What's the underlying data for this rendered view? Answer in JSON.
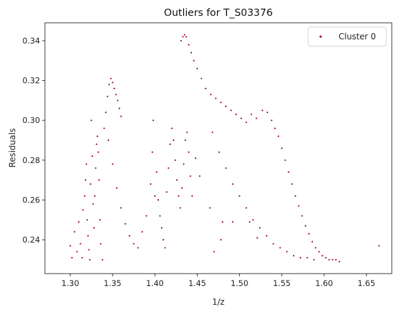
{
  "chart_data": {
    "type": "scatter",
    "title": "Outliers for T_S03376",
    "xlabel": "1/z",
    "ylabel": "Residuals",
    "xlim": [
      1.27,
      1.68
    ],
    "ylim": [
      0.223,
      0.349
    ],
    "xticks": [
      1.3,
      1.35,
      1.4,
      1.45,
      1.5,
      1.55,
      1.6,
      1.65
    ],
    "xtick_labels": [
      "1.30",
      "1.35",
      "1.40",
      "1.45",
      "1.50",
      "1.55",
      "1.60",
      "1.65"
    ],
    "yticks": [
      0.24,
      0.26,
      0.28,
      0.3,
      0.32,
      0.34
    ],
    "ytick_labels": [
      "0.24",
      "0.26",
      "0.28",
      "0.30",
      "0.32",
      "0.34"
    ],
    "grid": false,
    "legend_position": "top-right",
    "series": [
      {
        "name": "Cluster 0",
        "color": "#990044",
        "marker": "dot",
        "points": [
          [
            1.3,
            0.237
          ],
          [
            1.302,
            0.231
          ],
          [
            1.305,
            0.244
          ],
          [
            1.308,
            0.234
          ],
          [
            1.31,
            0.249
          ],
          [
            1.312,
            0.238
          ],
          [
            1.314,
            0.231
          ],
          [
            1.315,
            0.255
          ],
          [
            1.317,
            0.262
          ],
          [
            1.318,
            0.27
          ],
          [
            1.319,
            0.278
          ],
          [
            1.32,
            0.25
          ],
          [
            1.321,
            0.242
          ],
          [
            1.322,
            0.235
          ],
          [
            1.323,
            0.23
          ],
          [
            1.324,
            0.268
          ],
          [
            1.325,
            0.3
          ],
          [
            1.326,
            0.282
          ],
          [
            1.327,
            0.258
          ],
          [
            1.328,
            0.246
          ],
          [
            1.329,
            0.262
          ],
          [
            1.33,
            0.276
          ],
          [
            1.331,
            0.288
          ],
          [
            1.332,
            0.292
          ],
          [
            1.333,
            0.284
          ],
          [
            1.334,
            0.27
          ],
          [
            1.335,
            0.25
          ],
          [
            1.336,
            0.238
          ],
          [
            1.338,
            0.23
          ],
          [
            1.34,
            0.296
          ],
          [
            1.342,
            0.304
          ],
          [
            1.344,
            0.312
          ],
          [
            1.346,
            0.318
          ],
          [
            1.348,
            0.321
          ],
          [
            1.35,
            0.319
          ],
          [
            1.352,
            0.316
          ],
          [
            1.354,
            0.313
          ],
          [
            1.356,
            0.31
          ],
          [
            1.358,
            0.306
          ],
          [
            1.36,
            0.302
          ],
          [
            1.345,
            0.29
          ],
          [
            1.35,
            0.278
          ],
          [
            1.355,
            0.266
          ],
          [
            1.36,
            0.256
          ],
          [
            1.365,
            0.248
          ],
          [
            1.37,
            0.242
          ],
          [
            1.375,
            0.238
          ],
          [
            1.38,
            0.236
          ],
          [
            1.385,
            0.244
          ],
          [
            1.39,
            0.252
          ],
          [
            1.395,
            0.268
          ],
          [
            1.397,
            0.284
          ],
          [
            1.398,
            0.3
          ],
          [
            1.4,
            0.262
          ],
          [
            1.402,
            0.274
          ],
          [
            1.404,
            0.26
          ],
          [
            1.406,
            0.252
          ],
          [
            1.408,
            0.246
          ],
          [
            1.41,
            0.24
          ],
          [
            1.412,
            0.236
          ],
          [
            1.414,
            0.264
          ],
          [
            1.416,
            0.276
          ],
          [
            1.418,
            0.288
          ],
          [
            1.42,
            0.296
          ],
          [
            1.422,
            0.29
          ],
          [
            1.424,
            0.28
          ],
          [
            1.426,
            0.27
          ],
          [
            1.428,
            0.262
          ],
          [
            1.43,
            0.256
          ],
          [
            1.432,
            0.266
          ],
          [
            1.434,
            0.278
          ],
          [
            1.436,
            0.29
          ],
          [
            1.438,
            0.294
          ],
          [
            1.44,
            0.284
          ],
          [
            1.442,
            0.272
          ],
          [
            1.444,
            0.262
          ],
          [
            1.448,
            0.281
          ],
          [
            1.453,
            0.272
          ],
          [
            1.465,
            0.256
          ],
          [
            1.47,
            0.234
          ],
          [
            1.478,
            0.24
          ],
          [
            1.48,
            0.249
          ],
          [
            1.492,
            0.249
          ],
          [
            1.512,
            0.249
          ],
          [
            1.521,
            0.241
          ],
          [
            1.431,
            0.34
          ],
          [
            1.433,
            0.342
          ],
          [
            1.435,
            0.343
          ],
          [
            1.437,
            0.342
          ],
          [
            1.44,
            0.338
          ],
          [
            1.443,
            0.334
          ],
          [
            1.446,
            0.33
          ],
          [
            1.45,
            0.326
          ],
          [
            1.455,
            0.321
          ],
          [
            1.46,
            0.316
          ],
          [
            1.466,
            0.313
          ],
          [
            1.472,
            0.311
          ],
          [
            1.478,
            0.309
          ],
          [
            1.484,
            0.307
          ],
          [
            1.49,
            0.305
          ],
          [
            1.496,
            0.303
          ],
          [
            1.502,
            0.301
          ],
          [
            1.508,
            0.299
          ],
          [
            1.514,
            0.303
          ],
          [
            1.52,
            0.301
          ],
          [
            1.527,
            0.305
          ],
          [
            1.533,
            0.304
          ],
          [
            1.538,
            0.3
          ],
          [
            1.542,
            0.296
          ],
          [
            1.546,
            0.292
          ],
          [
            1.55,
            0.286
          ],
          [
            1.554,
            0.28
          ],
          [
            1.558,
            0.274
          ],
          [
            1.562,
            0.268
          ],
          [
            1.566,
            0.262
          ],
          [
            1.57,
            0.257
          ],
          [
            1.574,
            0.252
          ],
          [
            1.578,
            0.247
          ],
          [
            1.582,
            0.243
          ],
          [
            1.586,
            0.239
          ],
          [
            1.59,
            0.236
          ],
          [
            1.594,
            0.234
          ],
          [
            1.598,
            0.232
          ],
          [
            1.602,
            0.231
          ],
          [
            1.606,
            0.23
          ],
          [
            1.61,
            0.23
          ],
          [
            1.614,
            0.23
          ],
          [
            1.618,
            0.229
          ],
          [
            1.468,
            0.294
          ],
          [
            1.476,
            0.284
          ],
          [
            1.484,
            0.276
          ],
          [
            1.492,
            0.268
          ],
          [
            1.5,
            0.262
          ],
          [
            1.508,
            0.256
          ],
          [
            1.516,
            0.25
          ],
          [
            1.524,
            0.246
          ],
          [
            1.532,
            0.242
          ],
          [
            1.54,
            0.238
          ],
          [
            1.548,
            0.236
          ],
          [
            1.556,
            0.234
          ],
          [
            1.564,
            0.232
          ],
          [
            1.572,
            0.231
          ],
          [
            1.58,
            0.231
          ],
          [
            1.588,
            0.23
          ],
          [
            1.665,
            0.237
          ]
        ]
      }
    ]
  }
}
